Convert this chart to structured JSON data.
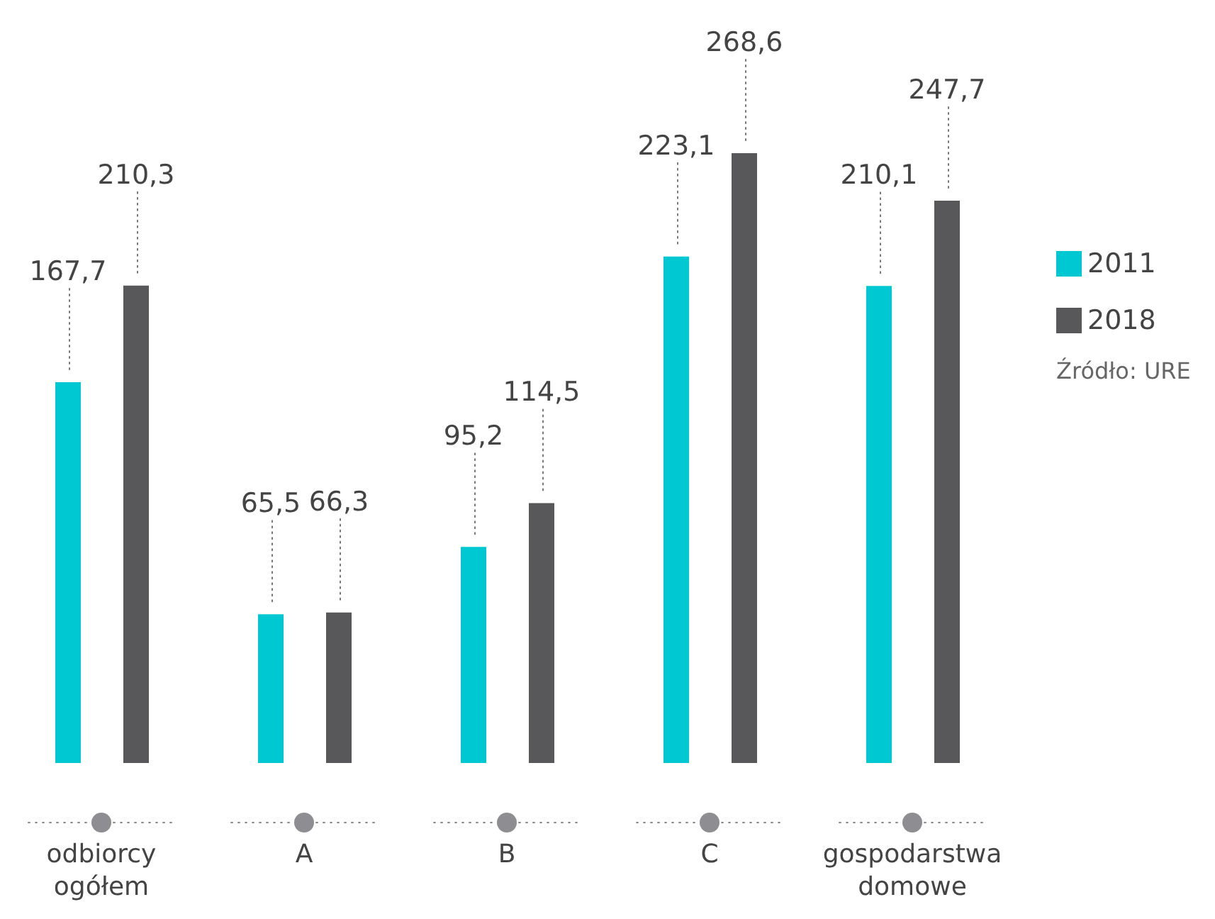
{
  "chart_data": {
    "type": "bar",
    "categories": [
      "odbiorcy ogółem",
      "A",
      "B",
      "C",
      "gospodarstwa domowe"
    ],
    "series": [
      {
        "name": "2011",
        "color": "#00c8d2",
        "values": [
          167.7,
          65.5,
          95.2,
          223.1,
          210.1
        ],
        "value_labels": [
          "167,7",
          "65,5",
          "95,2",
          "223,1",
          "210,1"
        ]
      },
      {
        "name": "2018",
        "color": "#58585a",
        "values": [
          210.3,
          66.3,
          114.5,
          268.6,
          247.7
        ],
        "value_labels": [
          "210,3",
          "66,3",
          "114,5",
          "268,6",
          "247,7"
        ]
      }
    ],
    "legend": "right",
    "annotations": [
      "Źródło: URE"
    ]
  }
}
